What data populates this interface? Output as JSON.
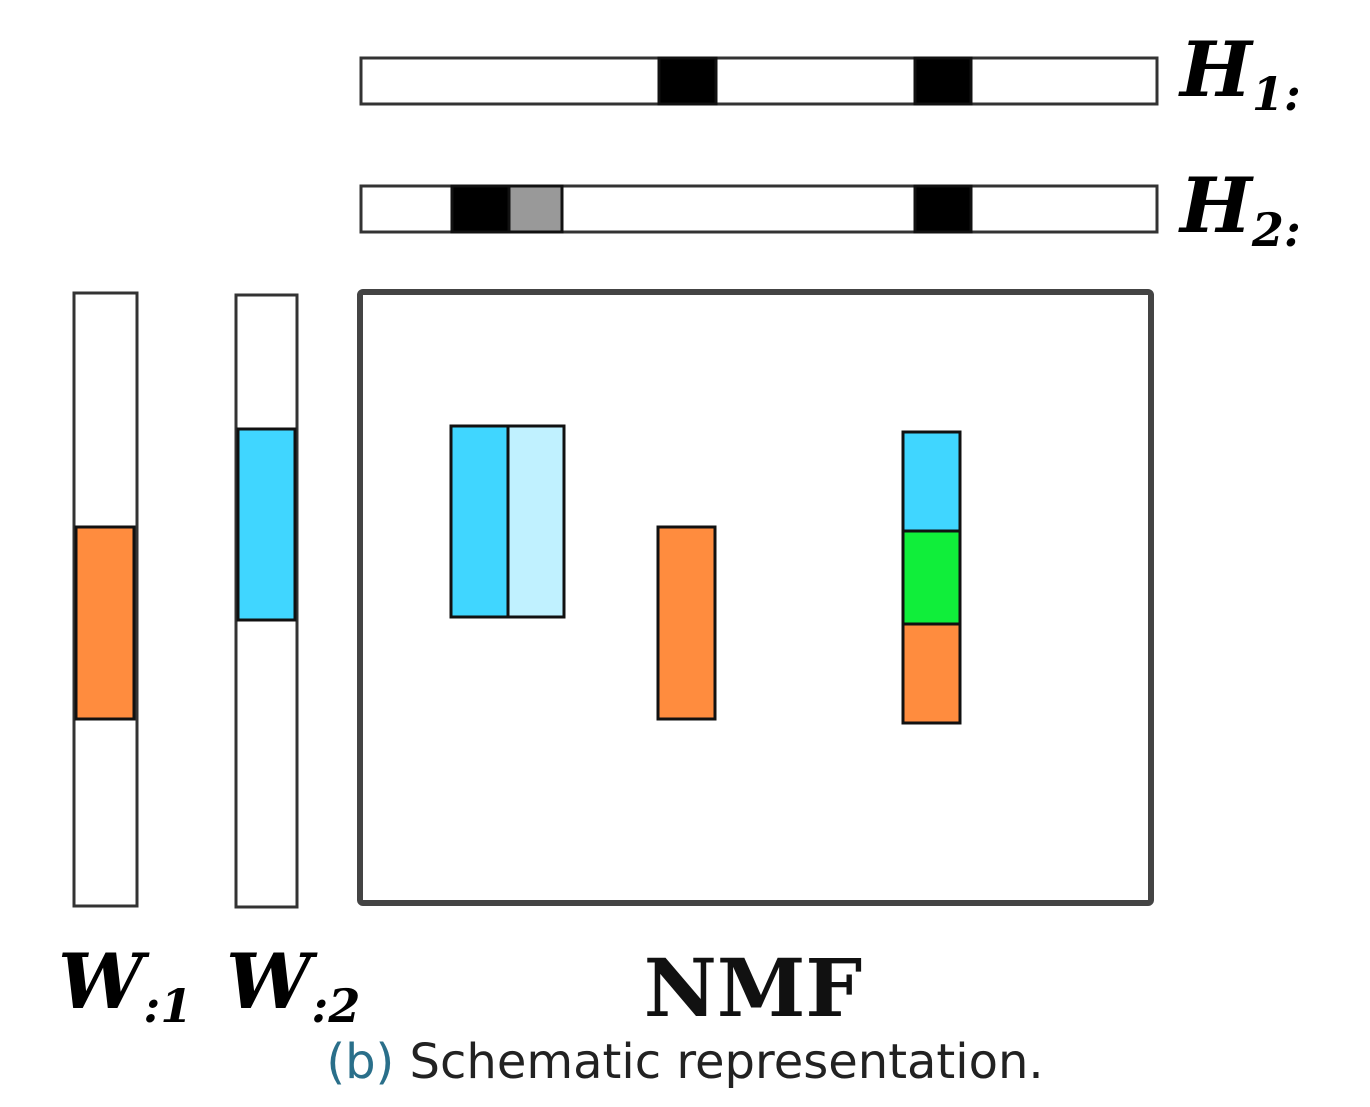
{
  "labels": {
    "h1_base": "H",
    "h1_sub": "1:",
    "h2_base": "H",
    "h2_sub": "2:",
    "w1_base": "W",
    "w1_sub": ":1",
    "w2_base": "W",
    "w2_sub": ":2",
    "nmf": "NMF"
  },
  "caption": {
    "tag": "(b)",
    "text": "Schematic representation."
  },
  "colors": {
    "black": "#000000",
    "gray": "#999999",
    "blue": "#40d6ff",
    "light_blue": "#c0f1ff",
    "orange": "#ff8c3e",
    "green": "#10ee3a",
    "frame": "#444444"
  }
}
